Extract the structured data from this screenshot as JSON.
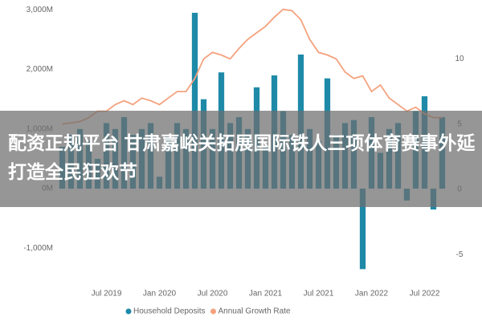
{
  "chart_data": {
    "type": "combo",
    "categories": [
      null,
      null,
      null,
      null,
      null,
      "Jul 2019",
      null,
      null,
      null,
      null,
      null,
      "Jan 2020",
      null,
      null,
      null,
      null,
      null,
      "Jul 2020",
      null,
      null,
      null,
      null,
      null,
      "Jan 2021",
      null,
      null,
      null,
      null,
      null,
      "Jul 2021",
      null,
      null,
      null,
      null,
      null,
      "Jan 2022",
      null,
      null,
      null,
      null,
      null,
      "Jul 2022",
      null,
      null
    ],
    "series": [
      {
        "name": "Household Deposits",
        "type": "bar",
        "color": "#1e8aa8",
        "values": [
          700,
          900,
          1000,
          800,
          500,
          1100,
          1000,
          1200,
          900,
          1000,
          1100,
          200,
          900,
          1100,
          1000,
          2950,
          1500,
          1000,
          1950,
          1100,
          1200,
          1000,
          1700,
          700,
          1900,
          1300,
          900,
          2250,
          1000,
          800,
          1850,
          900,
          1100,
          1150,
          -1350,
          1200,
          600,
          1000,
          1100,
          -200,
          1300,
          1550,
          -350,
          1200
        ]
      },
      {
        "name": "Annual Growth Rate",
        "type": "line",
        "axis": "y2",
        "color": "#f4a27e",
        "values": [
          5,
          5.1,
          5.2,
          5.5,
          6,
          6,
          6.5,
          6.8,
          6.5,
          7,
          6.8,
          6.5,
          7,
          7.5,
          7.5,
          8.5,
          10,
          10.5,
          10.3,
          10,
          10.8,
          11.5,
          12,
          12.5,
          13.2,
          13.8,
          13.7,
          13,
          11.5,
          10.5,
          10.3,
          10,
          9,
          8.5,
          8.7,
          7.5,
          8,
          7,
          6.5,
          6,
          6.3,
          5.8,
          5.5,
          5.5
        ]
      }
    ],
    "ylim": [
      -1480,
      3030
    ],
    "yticks": [
      {
        "value": -1000,
        "label": "-1,000M"
      },
      {
        "value": 0,
        "label": "0M"
      },
      {
        "value": 1000,
        "label": "1,000M"
      },
      {
        "value": 2000,
        "label": "2,000M"
      },
      {
        "value": 3000,
        "label": "3,000M"
      }
    ],
    "y2lim": [
      -6.7,
      13.9
    ],
    "y2ticks": [
      -5,
      0,
      5,
      10
    ],
    "grid": false,
    "legend": "bottom"
  },
  "banner": {
    "title": "配资正规平台 甘肃嘉峪关拓展国际铁人三项体育赛事外延 打造全民狂欢节"
  }
}
